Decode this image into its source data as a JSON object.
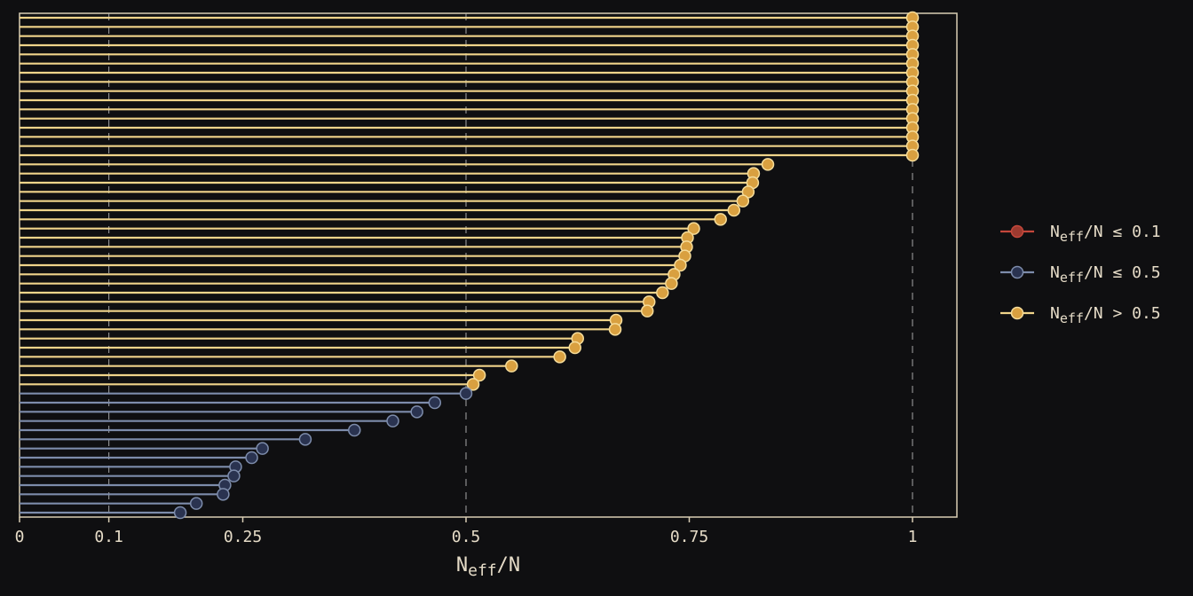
{
  "chart_data": {
    "type": "lollipop",
    "xlabel": "N_eff/N",
    "xlabel_main": "N",
    "xlabel_sub": "eff",
    "xlabel_tail": "/N",
    "xlim": [
      0,
      1.05
    ],
    "xticks": [
      0,
      0.1,
      0.25,
      0.5,
      0.75,
      1
    ],
    "xtick_labels": [
      "0",
      "0.1",
      "0.25",
      "0.5",
      "0.75",
      "1"
    ],
    "reference_lines": [
      0.1,
      0.5,
      1
    ],
    "grid": false,
    "legend_position": "right",
    "legend": [
      {
        "main": "N",
        "sub": "eff",
        "tail": "/N ≤ 0.1",
        "key": "low"
      },
      {
        "main": "N",
        "sub": "eff",
        "tail": "/N ≤ 0.5",
        "key": "mid"
      },
      {
        "main": "N",
        "sub": "eff",
        "tail": "/N > 0.5",
        "key": "high"
      }
    ],
    "colors": {
      "low": {
        "line": "#c4473b",
        "fill": "#9c3a30",
        "stroke": "#c4473b"
      },
      "mid": {
        "line": "#7d8cab",
        "fill": "#2a3350",
        "stroke": "#7d8cab"
      },
      "high": {
        "line": "#f0d48a",
        "fill": "#d9a040",
        "stroke": "#f5dc9a"
      },
      "frame": "#d8cdb4",
      "refline": "#b8b8b8"
    },
    "values": [
      1,
      1,
      1,
      1,
      1,
      1,
      1,
      1,
      1,
      1,
      1,
      1,
      1,
      1,
      1,
      1,
      0.838,
      0.822,
      0.821,
      0.816,
      0.81,
      0.8,
      0.785,
      0.755,
      0.748,
      0.747,
      0.745,
      0.74,
      0.733,
      0.73,
      0.72,
      0.705,
      0.703,
      0.668,
      0.667,
      0.625,
      0.622,
      0.605,
      0.551,
      0.515,
      0.508,
      0.5,
      0.465,
      0.445,
      0.418,
      0.375,
      0.32,
      0.272,
      0.26,
      0.242,
      0.24,
      0.23,
      0.228,
      0.198,
      0.18
    ]
  }
}
